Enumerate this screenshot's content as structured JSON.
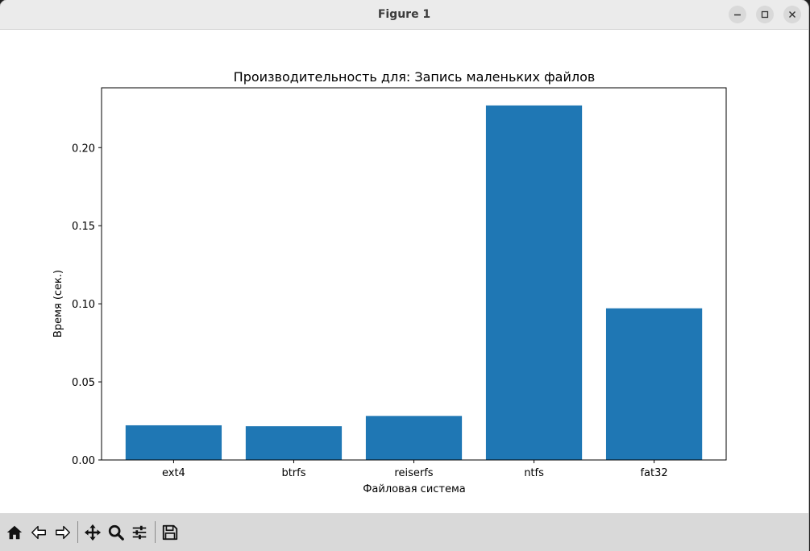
{
  "window": {
    "title": "Figure 1"
  },
  "chart_data": {
    "type": "bar",
    "title": "Производительность для: Запись маленьких файлов",
    "xlabel": "Файловая система",
    "ylabel": "Время (сек.)",
    "categories": [
      "ext4",
      "btrfs",
      "reiserfs",
      "ntfs",
      "fat32"
    ],
    "values": [
      0.0222,
      0.0216,
      0.0282,
      0.227,
      0.0971
    ],
    "ylim": [
      0,
      0.2383
    ],
    "yticks": [
      0,
      0.05,
      0.1,
      0.15,
      0.2
    ],
    "ytick_labels": [
      "0.00",
      "0.05",
      "0.10",
      "0.15",
      "0.20"
    ],
    "bar_color": "#1f77b4",
    "grid": false
  },
  "toolbar": {
    "icons": [
      "home-icon",
      "back-icon",
      "forward-icon",
      "pan-icon",
      "zoom-icon",
      "configure-icon",
      "save-icon"
    ]
  }
}
